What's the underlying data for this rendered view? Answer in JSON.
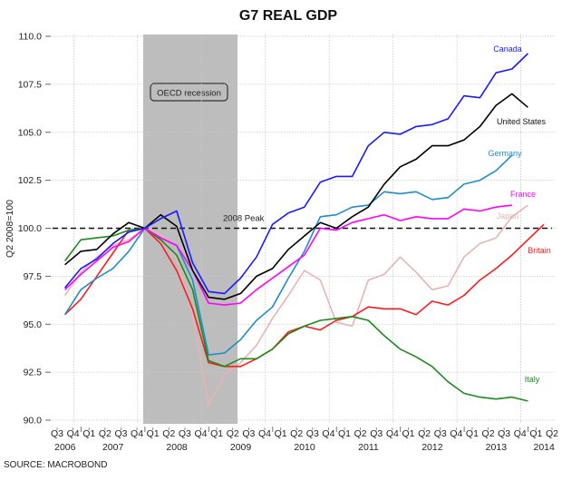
{
  "chart_data": {
    "type": "line",
    "title": "G7 REAL GDP",
    "ylabel": "Q2 2008=100",
    "xlabel": "",
    "source": "SOURCE: MACROBOND",
    "ylim": [
      90.0,
      110.0
    ],
    "yticks": [
      "90.0",
      "92.5",
      "95.0",
      "97.5",
      "100.0",
      "102.5",
      "105.0",
      "107.5",
      "110.0"
    ],
    "ytick_values": [
      90.0,
      92.5,
      95.0,
      97.5,
      100.0,
      102.5,
      105.0,
      107.5,
      110.0
    ],
    "grid": true,
    "quarters": [
      "Q3",
      "Q4",
      "Q1",
      "Q2",
      "Q3",
      "Q4",
      "Q1",
      "Q2",
      "Q3",
      "Q4",
      "Q1",
      "Q2",
      "Q3",
      "Q4",
      "Q1",
      "Q2",
      "Q3",
      "Q4",
      "Q1",
      "Q2",
      "Q3",
      "Q4",
      "Q1",
      "Q2",
      "Q3",
      "Q4",
      "Q1",
      "Q2",
      "Q3",
      "Q4",
      "Q1",
      "Q2"
    ],
    "years": [
      {
        "label": "2006",
        "start": 0,
        "end": 1
      },
      {
        "label": "2007",
        "start": 2,
        "end": 5
      },
      {
        "label": "2008",
        "start": 6,
        "end": 9
      },
      {
        "label": "2009",
        "start": 10,
        "end": 13
      },
      {
        "label": "2010",
        "start": 14,
        "end": 17
      },
      {
        "label": "2011",
        "start": 18,
        "end": 21
      },
      {
        "label": "2012",
        "start": 22,
        "end": 25
      },
      {
        "label": "2013",
        "start": 26,
        "end": 29
      },
      {
        "label": "2014",
        "start": 30,
        "end": 31
      }
    ],
    "recession": {
      "label": "OECD recession",
      "start_index": 5.5,
      "end_index": 11.5
    },
    "reference_line": {
      "label": "2008 Peak",
      "value": 100.0
    },
    "series": [
      {
        "name": "Canada",
        "color": "#1a1aff",
        "values": [
          null,
          96.9,
          97.9,
          98.4,
          99.2,
          99.8,
          100.0,
          100.5,
          100.9,
          98.2,
          96.7,
          96.6,
          97.4,
          98.5,
          100.2,
          100.8,
          101.1,
          102.4,
          102.7,
          102.7,
          104.3,
          105.0,
          104.9,
          105.3,
          105.4,
          105.7,
          106.9,
          106.8,
          108.1,
          108.3,
          109.1,
          null
        ]
      },
      {
        "name": "United States",
        "color": "#000000",
        "values": [
          null,
          98.1,
          98.8,
          98.9,
          99.7,
          100.3,
          100.0,
          100.7,
          100.1,
          97.8,
          96.4,
          96.3,
          96.6,
          97.5,
          97.9,
          98.9,
          99.6,
          100.3,
          100.0,
          100.6,
          101.1,
          102.3,
          103.2,
          103.6,
          104.3,
          104.3,
          104.6,
          105.3,
          106.4,
          107.0,
          106.3,
          null
        ]
      },
      {
        "name": "Germany",
        "color": "#1e8ec8",
        "values": [
          null,
          95.5,
          96.8,
          97.4,
          97.9,
          98.8,
          100.0,
          99.5,
          99.1,
          97.3,
          93.4,
          93.5,
          94.2,
          95.2,
          95.9,
          97.4,
          98.8,
          100.6,
          100.7,
          101.1,
          101.2,
          101.9,
          101.8,
          101.9,
          101.5,
          101.6,
          102.3,
          102.5,
          103.0,
          103.8,
          null,
          null
        ]
      },
      {
        "name": "France",
        "color": "#ff00ff",
        "values": [
          null,
          96.8,
          97.6,
          98.3,
          99.0,
          99.3,
          100.0,
          99.5,
          99.1,
          97.8,
          96.1,
          96.0,
          96.1,
          96.8,
          97.4,
          98.0,
          98.6,
          100.0,
          99.9,
          100.3,
          100.5,
          100.7,
          100.4,
          100.6,
          100.5,
          100.5,
          101.0,
          100.9,
          101.1,
          101.2,
          null,
          null
        ]
      },
      {
        "name": "Japan",
        "color": "#e6b4b4",
        "values": [
          null,
          96.5,
          97.7,
          98.5,
          99.1,
          99.4,
          100.0,
          99.7,
          98.4,
          95.5,
          90.8,
          92.4,
          93.0,
          93.9,
          95.3,
          96.5,
          97.8,
          97.3,
          95.1,
          94.9,
          97.3,
          97.6,
          98.5,
          97.7,
          96.8,
          97.0,
          98.5,
          99.2,
          99.5,
          100.6,
          101.2,
          null
        ]
      },
      {
        "name": "Britain",
        "color": "#ff1a1a",
        "values": [
          null,
          95.5,
          96.3,
          97.5,
          98.7,
          99.9,
          100.0,
          99.2,
          97.8,
          95.8,
          93.0,
          92.8,
          92.8,
          93.2,
          93.7,
          94.6,
          94.9,
          94.7,
          95.2,
          95.4,
          95.9,
          95.8,
          95.8,
          95.5,
          96.2,
          96.0,
          96.5,
          97.3,
          97.9,
          98.6,
          99.4,
          100.2
        ]
      },
      {
        "name": "Italy",
        "color": "#1a8c1a",
        "values": [
          null,
          98.3,
          99.4,
          99.5,
          99.6,
          99.9,
          100.0,
          99.4,
          98.6,
          96.8,
          93.1,
          92.8,
          93.2,
          93.2,
          93.7,
          94.5,
          94.9,
          95.2,
          95.3,
          95.4,
          95.2,
          94.4,
          93.7,
          93.3,
          92.8,
          92.0,
          91.4,
          91.2,
          91.1,
          91.2,
          91.0,
          null
        ]
      }
    ],
    "series_labels": [
      {
        "name": "Canada",
        "text": "Canada"
      },
      {
        "name": "United States",
        "text": "United States"
      },
      {
        "name": "Germany",
        "text": "Germany"
      },
      {
        "name": "France",
        "text": "France"
      },
      {
        "name": "Japan",
        "text": "Japan"
      },
      {
        "name": "Britain",
        "text": "Britain"
      },
      {
        "name": "Italy",
        "text": "Italy"
      }
    ]
  }
}
